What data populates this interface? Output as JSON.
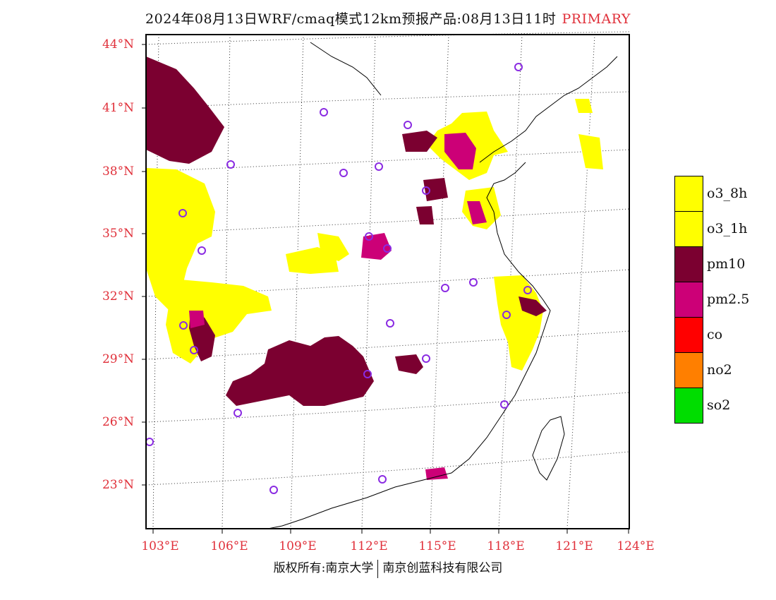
{
  "header": {
    "title": "2024年08月13日WRF/cmaq模式12km预报产品:08月13日11时",
    "tag": "PRIMARY"
  },
  "axes": {
    "lat_labels": [
      "44°N",
      "41°N",
      "38°N",
      "35°N",
      "32°N",
      "29°N",
      "26°N",
      "23°N"
    ],
    "lon_labels": [
      "103°E",
      "106°E",
      "109°E",
      "112°E",
      "115°E",
      "118°E",
      "121°E",
      "124°E"
    ]
  },
  "legend": {
    "items": [
      {
        "label": "o3_8h",
        "color": "#ffff00"
      },
      {
        "label": "o3_1h",
        "color": "#ffff00"
      },
      {
        "label": "pm10",
        "color": "#7b0030"
      },
      {
        "label": "pm2.5",
        "color": "#cc0077"
      },
      {
        "label": "co",
        "color": "#ff0000"
      },
      {
        "label": "no2",
        "color": "#ff7f00"
      },
      {
        "label": "so2",
        "color": "#00dd00"
      }
    ]
  },
  "footer": {
    "left": "版权所有:南京大学",
    "right": "南京创蓝科技有限公司"
  },
  "stations": "purple-circle-icon"
}
